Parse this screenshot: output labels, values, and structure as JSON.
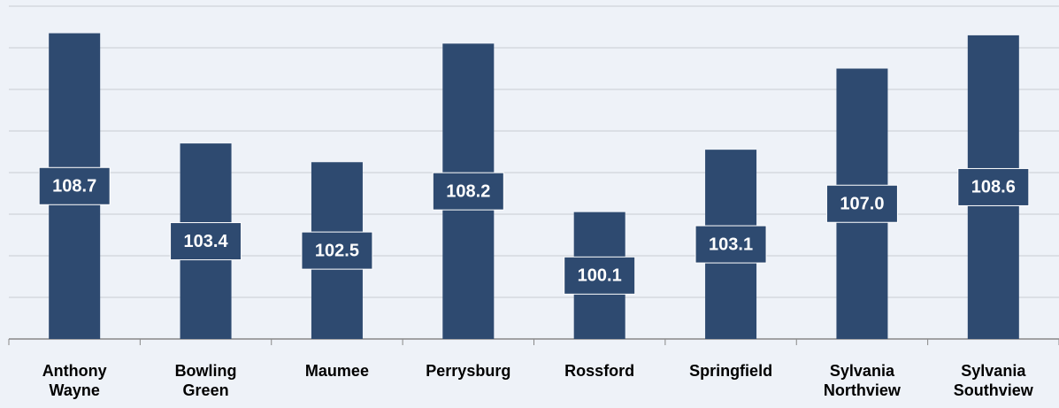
{
  "chart_data": {
    "type": "bar",
    "categories": [
      "Anthony Wayne",
      "Bowling Green",
      "Maumee",
      "Perrysburg",
      "Rossford",
      "Springfield",
      "Sylvania Northview",
      "Sylvania Southview"
    ],
    "values": [
      108.7,
      103.4,
      102.5,
      108.2,
      100.1,
      103.1,
      107.0,
      108.6
    ],
    "value_labels": [
      "108.7",
      "103.4",
      "102.5",
      "108.2",
      "100.1",
      "103.1",
      "107.0",
      "108.6"
    ],
    "color": "#2e4a70",
    "ylim": [
      94,
      110
    ],
    "yticks": [
      94,
      96,
      98,
      100,
      102,
      104,
      106,
      108,
      110
    ],
    "grid": true
  }
}
